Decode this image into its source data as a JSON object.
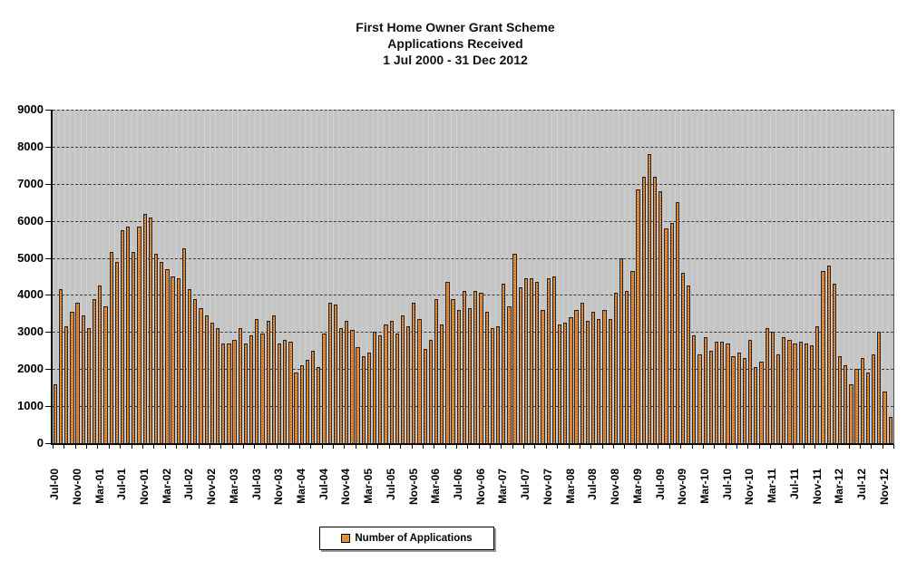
{
  "title": {
    "line1": "First Home Owner Grant Scheme",
    "line2": "Applications Received",
    "line3": "1 Jul 2000 - 31 Dec 2012"
  },
  "legend": {
    "label": "Number of Applications",
    "marker_color": "#ea8c33"
  },
  "colors": {
    "bar_fill": "#ea8c33",
    "bar_border": "#262626",
    "plot_background": "#c7c7c7",
    "gridline": "#3c3c3c"
  },
  "chart_data": {
    "type": "bar",
    "title": "First Home Owner Grant Scheme Applications Received 1 Jul 2000 - 31 Dec 2012",
    "xlabel": "",
    "ylabel": "",
    "ylim": [
      0,
      9000
    ],
    "y_tick_step": 1000,
    "y_tick_labels": [
      "0",
      "1000",
      "2000",
      "3000",
      "4000",
      "5000",
      "6000",
      "7000",
      "8000",
      "9000"
    ],
    "grid": "horizontal-dashed",
    "legend_position": "bottom-center",
    "x_start_month": "Jul-00",
    "x_end_month": "Dec-12",
    "months_per_bar": 1,
    "x_tick_every_n_bars": 4,
    "x_tick_labels": [
      "Jul-00",
      "Nov-00",
      "Mar-01",
      "Jul-01",
      "Nov-01",
      "Mar-02",
      "Jul-02",
      "Nov-02",
      "Mar-03",
      "Jul-03",
      "Nov-03",
      "Mar-04",
      "Jul-04",
      "Nov-04",
      "Mar-05",
      "Jul-05",
      "Nov-05",
      "Mar-06",
      "Jul-06",
      "Nov-06",
      "Mar-07",
      "Jul-07",
      "Nov-07",
      "Mar-08",
      "Jul-08",
      "Nov-08",
      "Mar-09",
      "Jul-09",
      "Nov-09",
      "Mar-10",
      "Jul-10",
      "Nov-10",
      "Mar-11",
      "Jul-11",
      "Nov-11",
      "Mar-12",
      "Jul-12",
      "Nov-12"
    ],
    "series": [
      {
        "name": "Number of Applications",
        "values": [
          1600,
          4150,
          3150,
          3550,
          3800,
          3450,
          3100,
          3900,
          4250,
          3700,
          5150,
          4900,
          5750,
          5850,
          5150,
          5850,
          6200,
          6100,
          5100,
          4900,
          4700,
          4500,
          4450,
          5250,
          4150,
          3900,
          3650,
          3450,
          3250,
          3100,
          2700,
          2700,
          2800,
          3100,
          2700,
          2900,
          3350,
          2950,
          3300,
          3450,
          2700,
          2800,
          2750,
          1900,
          2100,
          2250,
          2500,
          2050,
          2950,
          3800,
          3750,
          3100,
          3300,
          3050,
          2600,
          2350,
          2450,
          3000,
          2900,
          3200,
          3300,
          2950,
          3450,
          3150,
          3800,
          3350,
          2550,
          2800,
          3900,
          3200,
          4350,
          3900,
          3600,
          4100,
          3650,
          4100,
          4050,
          3550,
          3100,
          3150,
          4300,
          3700,
          5100,
          4200,
          4450,
          4450,
          4350,
          3600,
          4450,
          4500,
          3200,
          3250,
          3400,
          3600,
          3800,
          3300,
          3550,
          3350,
          3600,
          3350,
          4050,
          5000,
          4100,
          4650,
          6850,
          7200,
          7800,
          7200,
          6800,
          5800,
          5950,
          6500,
          4600,
          4250,
          2900,
          2400,
          2850,
          2500,
          2750,
          2750,
          2700,
          2350,
          2450,
          2300,
          2800,
          2050,
          2200,
          3100,
          3000,
          2400,
          2850,
          2800,
          2700,
          2750,
          2700,
          2650,
          3150,
          4650,
          4800,
          4300,
          2350,
          2100,
          1600,
          2000,
          2300,
          1900,
          2400,
          3000,
          1400,
          700
        ]
      }
    ]
  }
}
